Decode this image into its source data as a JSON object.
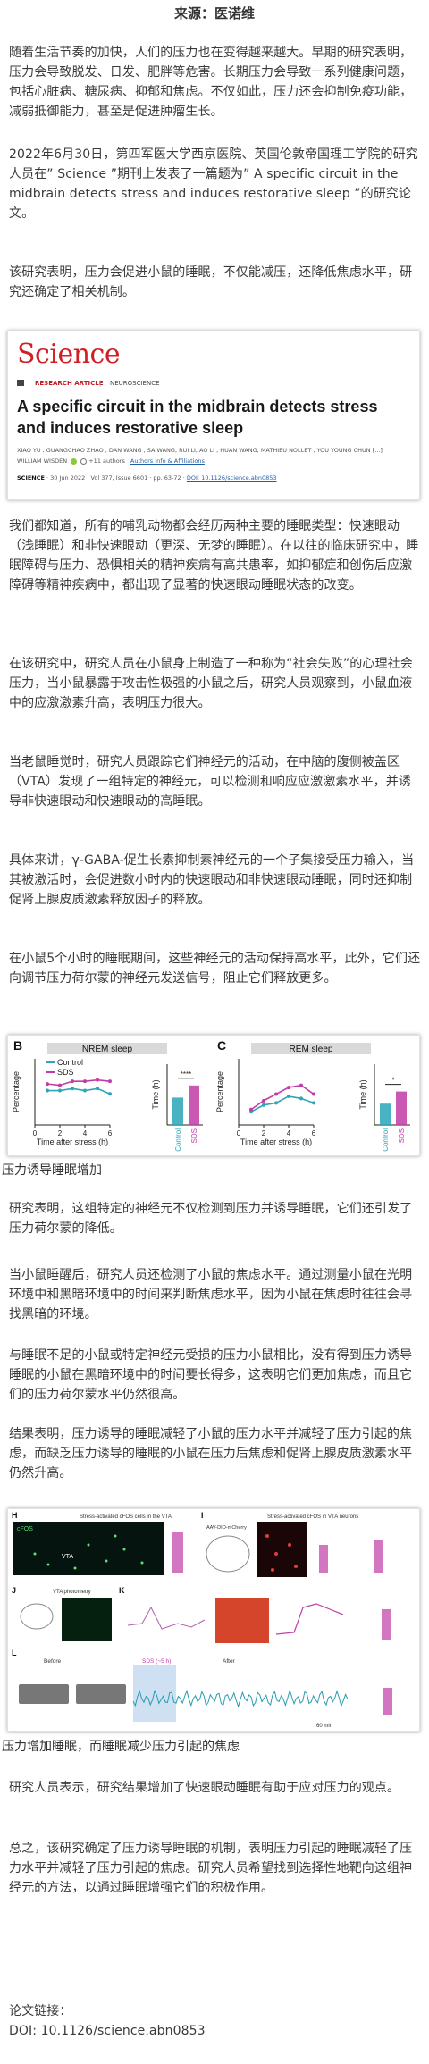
{
  "header": {
    "source": "来源：医诺维"
  },
  "paragraphs": {
    "p1": "随着生活节奏的加快，人们的压力也在变得越来越大。早期的研究表明，压力会导致脱发、日发、肥胖等危害。长期压力会导致一系列健康问题，包括心脏病、糖尿病、抑郁和焦虑。不仅如此，压力还会抑制免疫功能，减弱抵御能力，甚至是促进肿瘤生长。",
    "p2": "2022年6月30日，第四军医大学西京医院、英国伦敦帝国理工学院的研究人员在” Science ”期刊上发表了一篇题为” A specific circuit in the midbrain detects stress and induces restorative sleep ”的研究论文。",
    "p3": "该研究表明，压力会促进小鼠的睡眠，不仅能减压，还降低焦虑水平，研究还确定了相关机制。",
    "p4": "我们都知道，所有的哺乳动物都会经历两种主要的睡眠类型：快速眼动（浅睡眠）和非快速眼动（更深、无梦的睡眠）。在以往的临床研究中，睡眠障碍与压力、恐惧相关的精神疾病有高共患率，如抑郁症和创伤后应激障碍等精神疾病中，都出现了显著的快速眼动睡眠状态的改变。",
    "p5": "在该研究中，研究人员在小鼠身上制造了一种称为“社会失败”的心理社会压力，当小鼠暴露于攻击性极强的小鼠之后，研究人员观察到，小鼠血液中的应激激素升高，表明压力很大。",
    "p6": "当老鼠睡觉时，研究人员跟踪它们神经元的活动，在中脑的腹侧被盖区（VTA）发现了一组特定的神经元，可以检测和响应应激激素水平，并诱导非快速眼动和快速眼动的高睡眠。",
    "p7": "具体来讲，γ-GABA-促生长素抑制素神经元的一个子集接受压力输入，当其被激活时，会促进数小时内的快速眼动和非快速眼动睡眠，同时还抑制促肾上腺皮质激素释放因子的释放。",
    "p8": "在小鼠5个小时的睡眠期间，这些神经元的活动保持高水平，此外，它们还向调节压力荷尔蒙的神经元发送信号，阻止它们释放更多。",
    "p9": "研究表明，这组特定的神经元不仅检测到压力并诱导睡眠，它们还引发了压力荷尔蒙的降低。",
    "p10": "当小鼠睡醒后，研究人员还检测了小鼠的焦虑水平。通过测量小鼠在光明环境中和黑暗环境中的时间来判断焦虑水平，因为小鼠在焦虑时往往会寻找黑暗的环境。",
    "p11": "与睡眠不足的小鼠或特定神经元受损的压力小鼠相比，没有得到压力诱导睡眠的小鼠在黑暗环境中的时间要长得多，这表明它们更加焦虑，而且它们的压力荷尔蒙水平仍然很高。",
    "p12": "结果表明，压力诱导的睡眠减轻了小鼠的压力水平并减轻了压力引起的焦虑，而缺乏压力诱导的睡眠的小鼠在压力后焦虑和促肾上腺皮质激素水平仍然升高。",
    "p13": "研究人员表示，研究结果增加了快速眼动睡眠有助于应对压力的观点。",
    "p14": "总之，该研究确定了压力诱导睡眠的机制，表明压力引起的睡眠减轻了压力水平并减轻了压力引起的焦虑。研究人员希望找到选择性地靶向这组神经元的方法，以通过睡眠增强它们的积极作用。",
    "p15_label": "论文链接：",
    "p15_doi": "DOI: 10.1126/science.abn0853"
  },
  "captions": {
    "fig1": "压力诱导睡眠增加",
    "fig2": "压力增加睡眠，而睡眠减少压力引起的焦虑"
  },
  "science_card": {
    "logo": "Science",
    "section": "RESEARCH ARTICLE",
    "subsection": "NEUROSCIENCE",
    "title": "A specific circuit in the midbrain detects stress and induces restorative sleep",
    "authors_line1": "XIAO YU , GUANGCHAO ZHAO , DAN WANG , SA WANG, RUI LI, AO LI , HUAN WANG, MATHIEU NOLLET , YOU YOUNG CHUN [...]",
    "authors_line2": "WILLIAM WISDEN",
    "authors_more": "+11 authors",
    "authors_link": "Authors Info & Affiliations",
    "meta_journal": "SCIENCE",
    "meta_rest": " · 30 Jun 2022 · Vol 377, Issue 6601 · pp. 63-72 · ",
    "meta_doi": "DOI: 10.1126/science.abn0853"
  },
  "sleep_figure": {
    "colors": {
      "control": "#2aa6b8",
      "sds": "#c13ca6"
    },
    "legend": {
      "control": "Control",
      "sds": "SDS"
    },
    "panel_b": {
      "letter": "B",
      "title": "NREM sleep",
      "ylabel": "Percentage",
      "xlabel": "Time after stress (h)",
      "bar_ylabel": "Time (h)",
      "sig": "****"
    },
    "panel_c": {
      "letter": "C",
      "title": "REM sleep",
      "ylabel": "Percentage",
      "xlabel": "Time after stress (h)",
      "bar_ylabel": "Time (h)",
      "sig": "*"
    },
    "bar_labels": [
      "Control",
      "SDS"
    ]
  },
  "chart_data": [
    {
      "type": "line",
      "title": "NREM sleep",
      "xlabel": "Time after stress (h)",
      "ylabel": "Percentage",
      "x": [
        1,
        2,
        3,
        4,
        5,
        6
      ],
      "xlim": [
        0,
        6
      ],
      "ylim": [
        0,
        100
      ],
      "series": [
        {
          "name": "Control",
          "values": [
            52,
            52,
            55,
            52,
            55,
            47
          ]
        },
        {
          "name": "SDS",
          "values": [
            62,
            60,
            66,
            66,
            68,
            66
          ]
        }
      ]
    },
    {
      "type": "bar",
      "ylabel": "Time (h)",
      "categories": [
        "Control",
        "SDS"
      ],
      "values": [
        2.7,
        3.9
      ],
      "ylim": [
        0,
        6
      ]
    },
    {
      "type": "line",
      "title": "REM sleep",
      "xlabel": "Time after stress (h)",
      "ylabel": "Percentage",
      "x": [
        1,
        2,
        3,
        4,
        5,
        6
      ],
      "xlim": [
        0,
        6
      ],
      "ylim": [
        0,
        15
      ],
      "series": [
        {
          "name": "Control",
          "values": [
            3,
            4.5,
            5,
            6.5,
            6,
            5
          ]
        },
        {
          "name": "SDS",
          "values": [
            3.5,
            5.5,
            7,
            8.5,
            9,
            7
          ]
        }
      ]
    },
    {
      "type": "bar",
      "ylabel": "Time (h)",
      "categories": [
        "Control",
        "SDS"
      ],
      "values": [
        0.35,
        0.55
      ],
      "ylim": [
        0,
        1
      ]
    }
  ],
  "stress_figure": {
    "panel_letters": [
      "H",
      "I",
      "J",
      "K",
      "L"
    ],
    "vta_label": "VTA",
    "h_title": "Stress-activated cFOS cells in the VTA",
    "i_title": "Stress-activated cFOS in VTA neurons",
    "i_virus": "AAV-DIO-mCherry",
    "j_title": "VTA photometry",
    "l_before": "Before",
    "l_after": "After",
    "l_sds": "SDS (~5 h)",
    "cfos": "cFOS",
    "scale": "60 min"
  }
}
